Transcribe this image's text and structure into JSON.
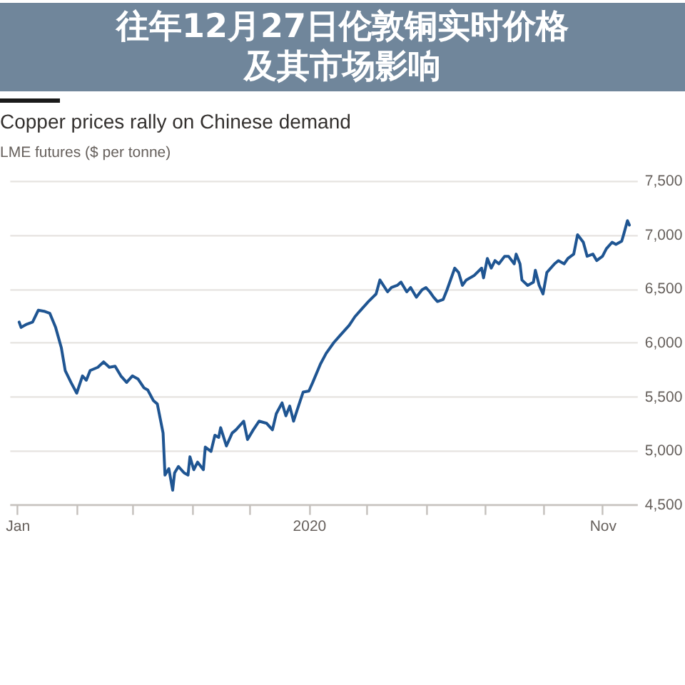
{
  "chart_data": {
    "type": "line",
    "title": "Copper prices rally on Chinese demand",
    "subtitle": "LME futures ($ per tonne)",
    "annotations": [
      "往年12月27日伦敦铜实时价格及其市场影响"
    ],
    "x": [
      "2020-01-02",
      "2020-01-03",
      "2020-01-06",
      "2020-01-09",
      "2020-01-12",
      "2020-01-15",
      "2020-01-18",
      "2020-01-21",
      "2020-01-24",
      "2020-01-26",
      "2020-01-29",
      "2020-02-01",
      "2020-02-04",
      "2020-02-06",
      "2020-02-08",
      "2020-02-12",
      "2020-02-15",
      "2020-02-18",
      "2020-02-21",
      "2020-02-24",
      "2020-02-27",
      "2020-03-01",
      "2020-03-04",
      "2020-03-07",
      "2020-03-09",
      "2020-03-12",
      "2020-03-14",
      "2020-03-17",
      "2020-03-18",
      "2020-03-20",
      "2020-03-22",
      "2020-03-23",
      "2020-03-25",
      "2020-03-28",
      "2020-03-30",
      "2020-03-31",
      "2020-04-02",
      "2020-04-04",
      "2020-04-07",
      "2020-04-08",
      "2020-04-11",
      "2020-04-13",
      "2020-04-15",
      "2020-04-16",
      "2020-04-19",
      "2020-04-22",
      "2020-04-24",
      "2020-04-28",
      "2020-04-30",
      "2020-05-03",
      "2020-05-06",
      "2020-05-10",
      "2020-05-13",
      "2020-05-15",
      "2020-05-18",
      "2020-05-20",
      "2020-05-22",
      "2020-05-24",
      "2020-05-26",
      "2020-05-29",
      "2020-06-01",
      "2020-06-03",
      "2020-06-07",
      "2020-06-10",
      "2020-06-14",
      "2020-06-17",
      "2020-06-22",
      "2020-06-25",
      "2020-06-29",
      "2020-07-02",
      "2020-07-06",
      "2020-07-08",
      "2020-07-12",
      "2020-07-14",
      "2020-07-17",
      "2020-07-19",
      "2020-07-22",
      "2020-07-24",
      "2020-07-27",
      "2020-07-30",
      "2020-08-01",
      "2020-08-03",
      "2020-08-05",
      "2020-08-07",
      "2020-08-10",
      "2020-08-12",
      "2020-08-16",
      "2020-08-18",
      "2020-08-20",
      "2020-08-22",
      "2020-08-26",
      "2020-08-30",
      "2020-08-31",
      "2020-09-02",
      "2020-09-04",
      "2020-09-06",
      "2020-09-08",
      "2020-09-11",
      "2020-09-13",
      "2020-09-16",
      "2020-09-17",
      "2020-09-19",
      "2020-09-20",
      "2020-09-23",
      "2020-09-26",
      "2020-09-27",
      "2020-09-29",
      "2020-10-01",
      "2020-10-03",
      "2020-10-07",
      "2020-10-09",
      "2020-10-12",
      "2020-10-14",
      "2020-10-17",
      "2020-10-19",
      "2020-10-22",
      "2020-10-24",
      "2020-10-27",
      "2020-10-29",
      "2020-11-01",
      "2020-11-03",
      "2020-11-06",
      "2020-11-08",
      "2020-11-11",
      "2020-11-12",
      "2020-11-14",
      "2020-11-15"
    ],
    "series": [
      {
        "color": "#1f5592",
        "values": [
          6190,
          6140,
          6170,
          6190,
          6300,
          6290,
          6270,
          6140,
          5950,
          5740,
          5630,
          5530,
          5690,
          5650,
          5740,
          5770,
          5820,
          5770,
          5780,
          5690,
          5630,
          5690,
          5660,
          5580,
          5560,
          5460,
          5430,
          5160,
          4770,
          4830,
          4630,
          4790,
          4850,
          4790,
          4770,
          4940,
          4820,
          4890,
          4820,
          5030,
          4990,
          5140,
          5120,
          5210,
          5040,
          5160,
          5190,
          5270,
          5100,
          5190,
          5270,
          5250,
          5190,
          5340,
          5440,
          5320,
          5410,
          5270,
          5380,
          5540,
          5550,
          5630,
          5800,
          5900,
          6000,
          6060,
          6160,
          6240,
          6320,
          6380,
          6450,
          6580,
          6470,
          6510,
          6530,
          6560,
          6470,
          6510,
          6420,
          6490,
          6510,
          6470,
          6420,
          6380,
          6400,
          6490,
          6690,
          6650,
          6530,
          6580,
          6620,
          6690,
          6600,
          6780,
          6690,
          6760,
          6730,
          6800,
          6800,
          6730,
          6820,
          6730,
          6580,
          6530,
          6560,
          6670,
          6530,
          6450,
          6650,
          6730,
          6760,
          6730,
          6780,
          6820,
          7000,
          6930,
          6800,
          6820,
          6760,
          6800,
          6870,
          6930,
          6910,
          6940,
          7000,
          7130,
          7090
        ]
      }
    ],
    "xlim": [
      "2019-12-28",
      "2020-11-19"
    ],
    "xticks": [
      {
        "value": "2020-01-01",
        "label": "Jan"
      },
      {
        "value": "2020-02-01",
        "label": null
      },
      {
        "value": "2020-03-01",
        "label": null
      },
      {
        "value": "2020-04-01",
        "label": null
      },
      {
        "value": "2020-05-01",
        "label": null
      },
      {
        "value": "2020-06-01",
        "label": "2020"
      },
      {
        "value": "2020-07-01",
        "label": null
      },
      {
        "value": "2020-08-01",
        "label": null
      },
      {
        "value": "2020-09-01",
        "label": null
      },
      {
        "value": "2020-10-01",
        "label": null
      },
      {
        "value": "2020-11-01",
        "label": "Nov"
      }
    ],
    "ylim": [
      4500,
      7500
    ],
    "yticks": [
      {
        "value": 4500,
        "label": "4,500"
      },
      {
        "value": 5000,
        "label": "5,000"
      },
      {
        "value": 5500,
        "label": "5,500"
      },
      {
        "value": 6000,
        "label": "6,000"
      },
      {
        "value": 6500,
        "label": "6,500"
      },
      {
        "value": 7000,
        "label": "7,000"
      },
      {
        "value": 7500,
        "label": "7,500"
      }
    ],
    "grid": "y",
    "line_style": "solid"
  }
}
